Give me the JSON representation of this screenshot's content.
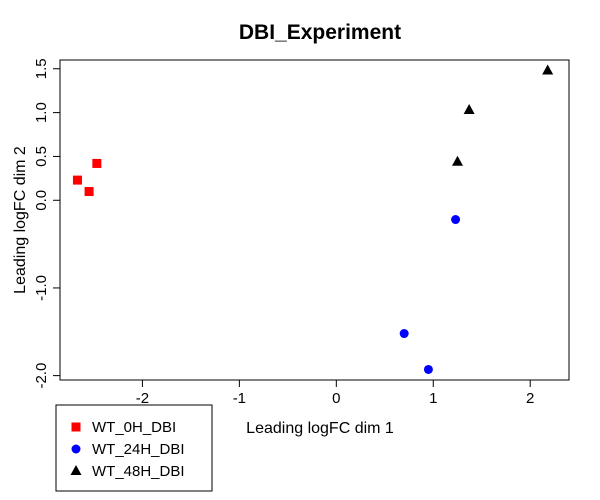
{
  "chart_data": {
    "type": "scatter",
    "title": "DBI_Experiment",
    "xlabel": "Leading logFC dim 1",
    "ylabel": "Leading logFC dim 2",
    "xlim": [
      -2.85,
      2.4
    ],
    "ylim": [
      -2.05,
      1.6
    ],
    "x_ticks": [
      -2,
      -1,
      0,
      1,
      2
    ],
    "y_ticks": [
      -2.0,
      -1.0,
      0.0,
      0.5,
      1.0,
      1.5
    ],
    "x_tick_labels": [
      "-2",
      "-1",
      "0",
      "1",
      "2"
    ],
    "y_tick_labels": [
      "-2.0",
      "-1.0",
      "0.0",
      "0.5",
      "1.0",
      "1.5"
    ],
    "legend_position": "bottom-left, outside plot",
    "series": [
      {
        "name": "WT_0H_DBI",
        "color": "#ff0000",
        "marker": "square",
        "points": [
          {
            "x": -2.47,
            "y": 0.42
          },
          {
            "x": -2.67,
            "y": 0.23
          },
          {
            "x": -2.55,
            "y": 0.1
          }
        ]
      },
      {
        "name": "WT_24H_DBI",
        "color": "#0000ff",
        "marker": "circle",
        "points": [
          {
            "x": 1.23,
            "y": -0.22
          },
          {
            "x": 0.7,
            "y": -1.52
          },
          {
            "x": 0.95,
            "y": -1.93
          }
        ]
      },
      {
        "name": "WT_48H_DBI",
        "color": "#000000",
        "marker": "triangle",
        "points": [
          {
            "x": 2.18,
            "y": 1.48
          },
          {
            "x": 1.37,
            "y": 1.03
          },
          {
            "x": 1.25,
            "y": 0.44
          }
        ]
      }
    ]
  }
}
